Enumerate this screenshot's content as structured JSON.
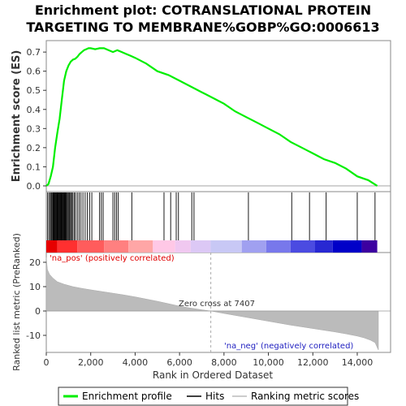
{
  "chart_data": {
    "type": "line",
    "title_line1": "Enrichment plot: COTRANSLATIONAL PROTEIN",
    "title_line2": "TARGETING TO MEMBRANE%GOBP%GO:0006613",
    "ylabel_top": "Enrichment score (ES)",
    "ylabel_bottom": "Ranked list metric (PreRanked)",
    "xlabel": "Rank in Ordered Dataset",
    "xlim": [
      0,
      15500
    ],
    "es_ylim": [
      -0.03,
      0.76
    ],
    "metric_ylim": [
      -17,
      24
    ],
    "x_ticks": [
      0,
      2000,
      4000,
      6000,
      8000,
      10000,
      12000,
      14000
    ],
    "x_tick_labels": [
      "0",
      "2,000",
      "4,000",
      "6,000",
      "8,000",
      "10,000",
      "12,000",
      "14,000"
    ],
    "es_ticks": [
      0.0,
      0.1,
      0.2,
      0.3,
      0.4,
      0.5,
      0.6,
      0.7
    ],
    "es_tick_labels": [
      "0.0",
      "0.1",
      "0.2",
      "0.3",
      "0.4",
      "0.5",
      "0.6",
      "0.7"
    ],
    "metric_ticks": [
      20,
      10,
      0,
      -10
    ],
    "metric_tick_labels": [
      "20",
      "10",
      "0",
      "-10"
    ],
    "enrichment_profile": {
      "name": "Enrichment profile",
      "color": "#00ee00",
      "x": [
        0,
        100,
        200,
        300,
        400,
        500,
        600,
        700,
        800,
        900,
        1000,
        1100,
        1200,
        1300,
        1400,
        1500,
        1600,
        1700,
        1800,
        1900,
        2000,
        2200,
        2400,
        2600,
        2800,
        3000,
        3200,
        3400,
        3600,
        3800,
        4000,
        4500,
        5000,
        5500,
        6000,
        6500,
        7000,
        7500,
        8000,
        8500,
        9000,
        9500,
        10000,
        10500,
        11000,
        11500,
        12000,
        12500,
        13000,
        13500,
        14000,
        14500,
        14900
      ],
      "y": [
        0.0,
        0.01,
        0.05,
        0.1,
        0.2,
        0.28,
        0.35,
        0.45,
        0.55,
        0.6,
        0.63,
        0.65,
        0.66,
        0.665,
        0.675,
        0.69,
        0.7,
        0.71,
        0.715,
        0.72,
        0.72,
        0.715,
        0.72,
        0.72,
        0.71,
        0.7,
        0.71,
        0.7,
        0.69,
        0.68,
        0.67,
        0.64,
        0.6,
        0.58,
        0.55,
        0.52,
        0.49,
        0.46,
        0.43,
        0.39,
        0.36,
        0.33,
        0.3,
        0.27,
        0.23,
        0.2,
        0.17,
        0.14,
        0.12,
        0.09,
        0.05,
        0.03,
        0.0
      ]
    },
    "hits": [
      60,
      120,
      180,
      220,
      260,
      300,
      330,
      360,
      390,
      420,
      450,
      480,
      510,
      540,
      570,
      600,
      630,
      660,
      690,
      720,
      750,
      780,
      810,
      840,
      870,
      900,
      940,
      980,
      1020,
      1060,
      1100,
      1150,
      1200,
      1260,
      1320,
      1400,
      1480,
      1560,
      1650,
      1750,
      1850,
      1950,
      2050,
      2400,
      2480,
      2560,
      3000,
      3080,
      3160,
      3240,
      3850,
      5300,
      5600,
      5850,
      5950,
      6550,
      6650,
      9100,
      11050,
      11850,
      12600,
      14000,
      14800
    ],
    "zero_cross_label": "Zero cross at 7407",
    "zero_cross_rank": 7407,
    "pos_label": "'na_pos' (positively correlated)",
    "neg_label": "'na_neg' (negatively correlated)",
    "metric_profile": {
      "name": "Ranking metric scores",
      "x": [
        0,
        50,
        150,
        300,
        500,
        800,
        1200,
        1600,
        2000,
        2500,
        3000,
        3500,
        4000,
        4500,
        5000,
        5500,
        6000,
        6500,
        7000,
        7407,
        8000,
        8500,
        9000,
        9500,
        10000,
        10500,
        11000,
        11500,
        12000,
        12500,
        13000,
        13500,
        14000,
        14300,
        14600,
        14800,
        14950
      ],
      "y": [
        22,
        17,
        15,
        13.5,
        12,
        11,
        10,
        9.3,
        8.7,
        8,
        7.3,
        6.6,
        5.8,
        4.9,
        4,
        3,
        2,
        1.2,
        0.5,
        0,
        -1.0,
        -1.8,
        -2.6,
        -3.4,
        -4.2,
        -5.0,
        -5.8,
        -6.5,
        -7.2,
        -7.9,
        -8.6,
        -9.4,
        -10.3,
        -11,
        -12,
        -13,
        -16
      ]
    },
    "legend": [
      {
        "label": "Enrichment profile",
        "color": "#00ee00"
      },
      {
        "label": "Hits",
        "color": "#000000"
      },
      {
        "label": "Ranking metric scores",
        "color": "#bbbbbb"
      }
    ],
    "heatbar_colors": [
      "#e60000",
      "#ff3030",
      "#ff5c5c",
      "#ff8080",
      "#ffa6a6",
      "#ffc8e6",
      "#f0c8f0",
      "#dcc8f5",
      "#c8c8f5",
      "#a0a0f0",
      "#7878eb",
      "#4b4be1",
      "#2828d2",
      "#0000c8",
      "#3c00a0"
    ],
    "heatbar_breaks": [
      0,
      500,
      1400,
      2600,
      3700,
      4800,
      5800,
      6500,
      7400,
      8800,
      9900,
      11000,
      12100,
      12900,
      14200,
      14900
    ],
    "legend_placement": "bottom",
    "grid": false
  }
}
